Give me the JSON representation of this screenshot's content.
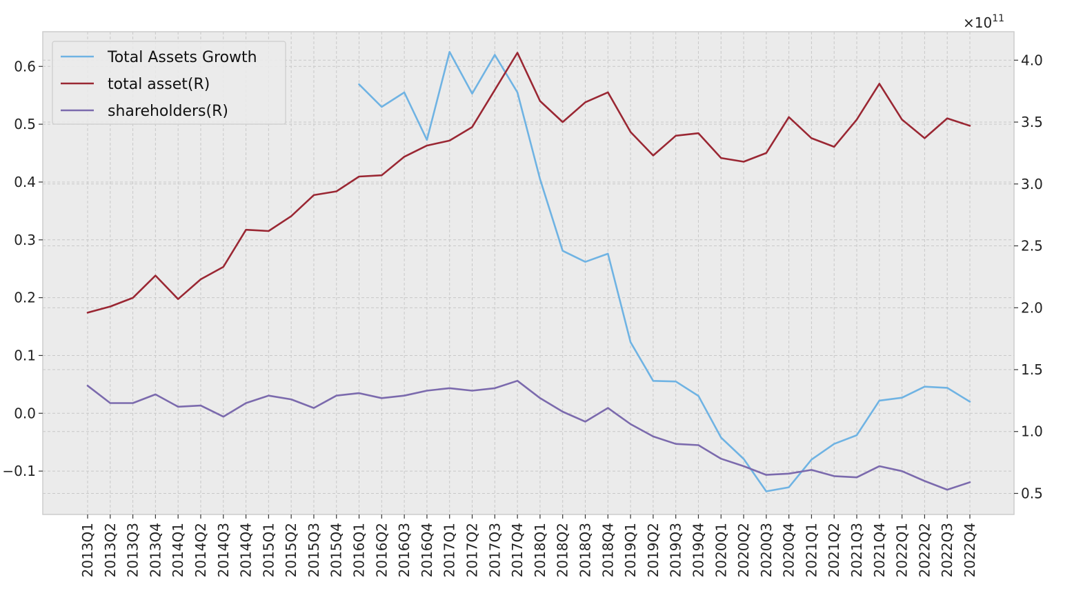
{
  "chart_data": {
    "type": "line",
    "title": "",
    "xlabel": "",
    "ylabel": "",
    "categories": [
      "2013Q1",
      "2013Q2",
      "2013Q3",
      "2013Q4",
      "2014Q1",
      "2014Q2",
      "2014Q3",
      "2014Q4",
      "2015Q1",
      "2015Q2",
      "2015Q3",
      "2015Q4",
      "2016Q1",
      "2016Q2",
      "2016Q3",
      "2016Q4",
      "2017Q1",
      "2017Q2",
      "2017Q3",
      "2017Q4",
      "2018Q1",
      "2018Q2",
      "2018Q3",
      "2018Q4",
      "2019Q1",
      "2019Q2",
      "2019Q3",
      "2019Q4",
      "2020Q1",
      "2020Q2",
      "2020Q3",
      "2020Q4",
      "2021Q1",
      "2021Q2",
      "2021Q3",
      "2021Q4",
      "2022Q1",
      "2022Q2",
      "2022Q3",
      "2022Q4"
    ],
    "left_axis": {
      "ylim": [
        -0.175,
        0.66
      ],
      "ticks": [
        -0.1,
        0.0,
        0.1,
        0.2,
        0.3,
        0.4,
        0.5,
        0.6
      ],
      "tick_labels": [
        "−0.1",
        "0.0",
        "0.1",
        "0.2",
        "0.3",
        "0.4",
        "0.5",
        "0.6"
      ]
    },
    "right_axis": {
      "ylim": [
        0.33,
        4.23
      ],
      "ticks": [
        0.5,
        1.0,
        1.5,
        2.0,
        2.5,
        3.0,
        3.5,
        4.0
      ],
      "tick_labels": [
        "0.5",
        "1.0",
        "1.5",
        "2.0",
        "2.5",
        "3.0",
        "3.5",
        "4.0"
      ],
      "offset_label_base": "×10",
      "offset_label_exp": "11"
    },
    "grid": true,
    "legend_position": "upper-left",
    "series": [
      {
        "name": "Total Assets Growth",
        "axis": "left",
        "color": "#6fb3e3",
        "values": [
          null,
          null,
          null,
          null,
          null,
          null,
          null,
          null,
          null,
          null,
          null,
          null,
          0.569,
          0.53,
          0.555,
          0.473,
          0.625,
          0.553,
          0.62,
          0.555,
          0.405,
          0.281,
          0.262,
          0.276,
          0.123,
          0.056,
          0.055,
          0.03,
          -0.042,
          -0.079,
          -0.135,
          -0.128,
          -0.08,
          -0.053,
          -0.038,
          0.022,
          0.027,
          0.046,
          0.044,
          0.02
        ]
      },
      {
        "name": "total asset(R)",
        "axis": "right",
        "color": "#9a2733",
        "values": [
          1.96,
          2.01,
          2.08,
          2.26,
          2.07,
          2.23,
          2.33,
          2.63,
          2.62,
          2.74,
          2.91,
          2.94,
          3.06,
          3.07,
          3.22,
          3.31,
          3.35,
          3.46,
          3.76,
          4.06,
          3.67,
          3.5,
          3.66,
          3.74,
          3.42,
          3.23,
          3.39,
          3.41,
          3.21,
          3.18,
          3.25,
          3.54,
          3.37,
          3.3,
          3.52,
          3.81,
          3.52,
          3.37,
          3.53,
          3.47
        ]
      },
      {
        "name": "shareholders(R)",
        "axis": "right",
        "color": "#7b6aad",
        "values": [
          1.37,
          1.23,
          1.23,
          1.3,
          1.2,
          1.21,
          1.12,
          1.23,
          1.29,
          1.26,
          1.19,
          1.29,
          1.31,
          1.27,
          1.29,
          1.33,
          1.35,
          1.33,
          1.35,
          1.41,
          1.27,
          1.16,
          1.08,
          1.19,
          1.06,
          0.96,
          0.9,
          0.89,
          0.78,
          0.72,
          0.65,
          0.66,
          0.69,
          0.64,
          0.63,
          0.72,
          0.68,
          0.6,
          0.53,
          0.59
        ]
      }
    ]
  }
}
